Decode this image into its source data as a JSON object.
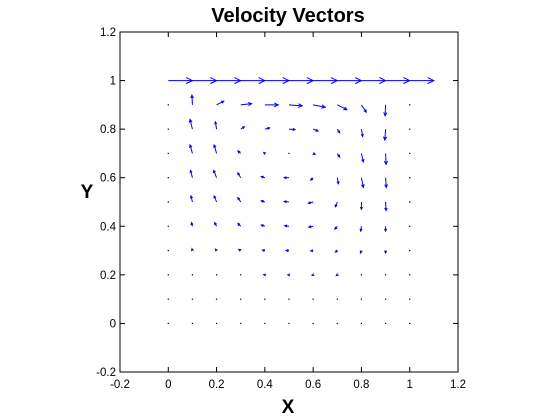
{
  "chart_data": {
    "type": "quiver",
    "title": "Velocity Vectors",
    "xlabel": "X",
    "ylabel": "Y",
    "xlim": [
      -0.2,
      1.2
    ],
    "ylim": [
      -0.2,
      1.2
    ],
    "xticks": [
      "-0.2",
      "0",
      "0.2",
      "0.4",
      "0.6",
      "0.8",
      "1",
      "1.2"
    ],
    "yticks": [
      "-0.2",
      "0",
      "0.2",
      "0.4",
      "0.6",
      "0.8",
      "1",
      "1.2"
    ],
    "grid": false,
    "box": true,
    "arrow_color": "#0000ff",
    "dot_color": "#000000",
    "grid_x": [
      0,
      0.1,
      0.2,
      0.3,
      0.4,
      0.5,
      0.6,
      0.7,
      0.8,
      0.9,
      1.0
    ],
    "grid_y": [
      0,
      0.1,
      0.2,
      0.3,
      0.4,
      0.5,
      0.6,
      0.7,
      0.8,
      0.9,
      1.0
    ],
    "vectors": [
      {
        "x": 0.0,
        "y": 1.0,
        "u": 0.1,
        "v": 0
      },
      {
        "x": 0.1,
        "y": 1.0,
        "u": 0.1,
        "v": 0
      },
      {
        "x": 0.2,
        "y": 1.0,
        "u": 0.1,
        "v": 0
      },
      {
        "x": 0.3,
        "y": 1.0,
        "u": 0.1,
        "v": 0
      },
      {
        "x": 0.4,
        "y": 1.0,
        "u": 0.1,
        "v": 0
      },
      {
        "x": 0.5,
        "y": 1.0,
        "u": 0.1,
        "v": 0
      },
      {
        "x": 0.6,
        "y": 1.0,
        "u": 0.1,
        "v": 0
      },
      {
        "x": 0.7,
        "y": 1.0,
        "u": 0.1,
        "v": 0
      },
      {
        "x": 0.8,
        "y": 1.0,
        "u": 0.1,
        "v": 0
      },
      {
        "x": 0.9,
        "y": 1.0,
        "u": 0.1,
        "v": 0
      },
      {
        "x": 1.0,
        "y": 1.0,
        "u": 0.1,
        "v": 0
      },
      {
        "x": 0.1,
        "y": 0.9,
        "u": -0.002,
        "v": 0.04
      },
      {
        "x": 0.2,
        "y": 0.9,
        "u": 0.03,
        "v": 0.015
      },
      {
        "x": 0.3,
        "y": 0.9,
        "u": 0.045,
        "v": 0.005
      },
      {
        "x": 0.4,
        "y": 0.9,
        "u": 0.055,
        "v": 0.0
      },
      {
        "x": 0.5,
        "y": 0.9,
        "u": 0.055,
        "v": -0.004
      },
      {
        "x": 0.6,
        "y": 0.9,
        "u": 0.05,
        "v": -0.01
      },
      {
        "x": 0.7,
        "y": 0.9,
        "u": 0.04,
        "v": -0.02
      },
      {
        "x": 0.8,
        "y": 0.9,
        "u": 0.02,
        "v": -0.03
      },
      {
        "x": 0.9,
        "y": 0.9,
        "u": -0.002,
        "v": -0.045
      },
      {
        "x": 0.1,
        "y": 0.8,
        "u": -0.01,
        "v": 0.04
      },
      {
        "x": 0.2,
        "y": 0.8,
        "u": -0.005,
        "v": 0.03
      },
      {
        "x": 0.3,
        "y": 0.8,
        "u": 0.015,
        "v": 0.01
      },
      {
        "x": 0.4,
        "y": 0.8,
        "u": 0.02,
        "v": 0.005
      },
      {
        "x": 0.5,
        "y": 0.8,
        "u": 0.025,
        "v": -0.002
      },
      {
        "x": 0.6,
        "y": 0.8,
        "u": 0.02,
        "v": -0.008
      },
      {
        "x": 0.7,
        "y": 0.8,
        "u": 0.01,
        "v": -0.015
      },
      {
        "x": 0.8,
        "y": 0.8,
        "u": 0.005,
        "v": -0.03
      },
      {
        "x": 0.9,
        "y": 0.8,
        "u": -0.003,
        "v": -0.045
      },
      {
        "x": 0.1,
        "y": 0.7,
        "u": -0.01,
        "v": 0.035
      },
      {
        "x": 0.2,
        "y": 0.7,
        "u": -0.01,
        "v": 0.035
      },
      {
        "x": 0.3,
        "y": 0.7,
        "u": -0.012,
        "v": 0.01
      },
      {
        "x": 0.4,
        "y": 0.7,
        "u": -0.005,
        "v": 0.004
      },
      {
        "x": 0.5,
        "y": 0.7,
        "u": 0.004,
        "v": 0.0
      },
      {
        "x": 0.6,
        "y": 0.7,
        "u": 0.008,
        "v": -0.004
      },
      {
        "x": 0.7,
        "y": 0.7,
        "u": 0.01,
        "v": -0.015
      },
      {
        "x": 0.8,
        "y": 0.7,
        "u": 0.008,
        "v": -0.035
      },
      {
        "x": 0.9,
        "y": 0.7,
        "u": 0.002,
        "v": -0.045
      },
      {
        "x": 0.1,
        "y": 0.6,
        "u": -0.008,
        "v": 0.03
      },
      {
        "x": 0.2,
        "y": 0.6,
        "u": -0.012,
        "v": 0.03
      },
      {
        "x": 0.3,
        "y": 0.6,
        "u": -0.012,
        "v": 0.02
      },
      {
        "x": 0.4,
        "y": 0.6,
        "u": -0.015,
        "v": 0.005
      },
      {
        "x": 0.5,
        "y": 0.6,
        "u": -0.02,
        "v": 0.0
      },
      {
        "x": 0.6,
        "y": 0.6,
        "u": -0.01,
        "v": -0.01
      },
      {
        "x": 0.7,
        "y": 0.6,
        "u": 0.005,
        "v": -0.025
      },
      {
        "x": 0.8,
        "y": 0.6,
        "u": 0.008,
        "v": -0.04
      },
      {
        "x": 0.9,
        "y": 0.6,
        "u": 0.003,
        "v": -0.04
      },
      {
        "x": 0.1,
        "y": 0.5,
        "u": -0.006,
        "v": 0.025
      },
      {
        "x": 0.2,
        "y": 0.5,
        "u": -0.01,
        "v": 0.025
      },
      {
        "x": 0.3,
        "y": 0.5,
        "u": -0.012,
        "v": 0.018
      },
      {
        "x": 0.4,
        "y": 0.5,
        "u": -0.015,
        "v": 0.005
      },
      {
        "x": 0.5,
        "y": 0.5,
        "u": -0.02,
        "v": 0.002
      },
      {
        "x": 0.6,
        "y": 0.5,
        "u": -0.02,
        "v": -0.005
      },
      {
        "x": 0.7,
        "y": 0.5,
        "u": -0.008,
        "v": -0.02
      },
      {
        "x": 0.8,
        "y": 0.5,
        "u": 0.0,
        "v": -0.03
      },
      {
        "x": 0.9,
        "y": 0.5,
        "u": 0.002,
        "v": -0.035
      },
      {
        "x": 0.1,
        "y": 0.4,
        "u": -0.004,
        "v": 0.015
      },
      {
        "x": 0.2,
        "y": 0.4,
        "u": -0.008,
        "v": 0.015
      },
      {
        "x": 0.3,
        "y": 0.4,
        "u": -0.012,
        "v": 0.012
      },
      {
        "x": 0.4,
        "y": 0.4,
        "u": -0.015,
        "v": 0.005
      },
      {
        "x": 0.5,
        "y": 0.4,
        "u": -0.018,
        "v": 0.002
      },
      {
        "x": 0.6,
        "y": 0.4,
        "u": -0.018,
        "v": -0.003
      },
      {
        "x": 0.7,
        "y": 0.4,
        "u": -0.01,
        "v": -0.012
      },
      {
        "x": 0.8,
        "y": 0.4,
        "u": -0.003,
        "v": -0.02
      },
      {
        "x": 0.9,
        "y": 0.4,
        "u": 0.0,
        "v": -0.02
      },
      {
        "x": 0.1,
        "y": 0.3,
        "u": -0.002,
        "v": 0.008
      },
      {
        "x": 0.2,
        "y": 0.3,
        "u": -0.005,
        "v": 0.006
      },
      {
        "x": 0.3,
        "y": 0.3,
        "u": -0.008,
        "v": 0.005
      },
      {
        "x": 0.4,
        "y": 0.3,
        "u": -0.01,
        "v": 0.002
      },
      {
        "x": 0.5,
        "y": 0.3,
        "u": -0.012,
        "v": 0.0
      },
      {
        "x": 0.6,
        "y": 0.3,
        "u": -0.01,
        "v": -0.002
      },
      {
        "x": 0.7,
        "y": 0.3,
        "u": -0.008,
        "v": -0.006
      },
      {
        "x": 0.8,
        "y": 0.3,
        "u": -0.004,
        "v": -0.01
      },
      {
        "x": 0.9,
        "y": 0.3,
        "u": 0.0,
        "v": -0.01
      },
      {
        "x": 0.1,
        "y": 0.2,
        "u": -0.001,
        "v": 0.004
      },
      {
        "x": 0.2,
        "y": 0.2,
        "u": -0.003,
        "v": 0.003
      },
      {
        "x": 0.3,
        "y": 0.2,
        "u": -0.004,
        "v": 0.002
      },
      {
        "x": 0.4,
        "y": 0.2,
        "u": -0.005,
        "v": 0.001
      },
      {
        "x": 0.5,
        "y": 0.2,
        "u": -0.005,
        "v": 0.0
      },
      {
        "x": 0.6,
        "y": 0.2,
        "u": -0.005,
        "v": -0.001
      },
      {
        "x": 0.7,
        "y": 0.2,
        "u": -0.004,
        "v": -0.003
      },
      {
        "x": 0.8,
        "y": 0.2,
        "u": -0.002,
        "v": -0.004
      },
      {
        "x": 0.9,
        "y": 0.2,
        "u": 0.0,
        "v": -0.004
      },
      {
        "x": 0.1,
        "y": 0.1,
        "u": 0.0,
        "v": 0.001
      },
      {
        "x": 0.2,
        "y": 0.1,
        "u": -0.001,
        "v": 0.001
      },
      {
        "x": 0.3,
        "y": 0.1,
        "u": -0.001,
        "v": 0.0
      },
      {
        "x": 0.4,
        "y": 0.1,
        "u": -0.001,
        "v": 0.0
      },
      {
        "x": 0.5,
        "y": 0.1,
        "u": -0.001,
        "v": 0.0
      },
      {
        "x": 0.6,
        "y": 0.1,
        "u": -0.001,
        "v": 0.0
      },
      {
        "x": 0.7,
        "y": 0.1,
        "u": -0.001,
        "v": -0.001
      },
      {
        "x": 0.8,
        "y": 0.1,
        "u": 0.0,
        "v": -0.001
      },
      {
        "x": 0.9,
        "y": 0.1,
        "u": 0.0,
        "v": -0.001
      }
    ]
  }
}
